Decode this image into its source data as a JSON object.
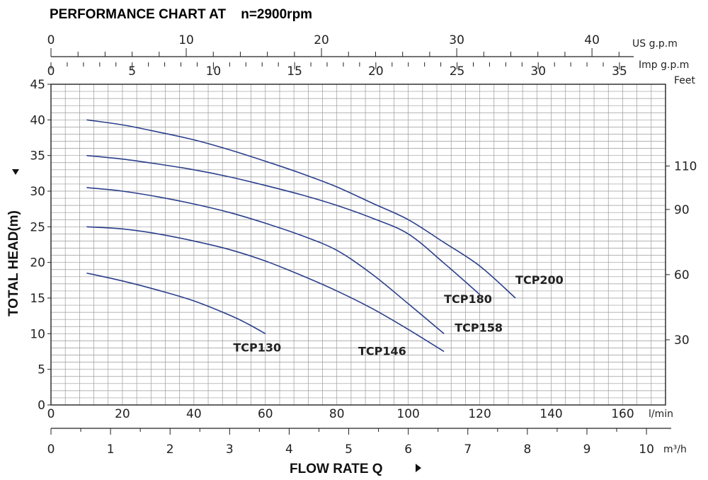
{
  "chart_data": {
    "type": "line",
    "title": "PERFORMANCE CHART AT    n=2900rpm",
    "ylabel": "TOTAL HEAD(m)",
    "xlabel": "FLOW RATE Q",
    "x_unit": "l/min",
    "xlim": [
      0,
      172
    ],
    "ylim": [
      0,
      45
    ],
    "x_ticks": [
      0,
      20,
      40,
      60,
      80,
      100,
      120,
      140,
      160
    ],
    "y_ticks": [
      0,
      5,
      10,
      15,
      20,
      25,
      30,
      35,
      40,
      45
    ],
    "grid": true,
    "secondary_axes": {
      "us_gpm": {
        "unit": "US g.p.m",
        "ticks": [
          0,
          10,
          20,
          30,
          40
        ]
      },
      "imp_gpm": {
        "unit": "Imp g.p.m",
        "ticks": [
          0,
          5,
          10,
          15,
          20,
          25,
          30,
          35
        ]
      },
      "feet": {
        "unit": "Feet",
        "ticks": [
          30,
          60,
          90,
          110
        ]
      },
      "m3h": {
        "unit": "m³/h",
        "ticks": [
          0,
          1,
          2,
          3,
          4,
          5,
          6,
          7,
          8,
          9,
          10
        ]
      }
    },
    "series": [
      {
        "name": "TCP130",
        "x": [
          10,
          20,
          30,
          40,
          50,
          55,
          60
        ],
        "y": [
          18.5,
          17.4,
          16.1,
          14.6,
          12.6,
          11.4,
          10
        ]
      },
      {
        "name": "TCP146",
        "x": [
          10,
          20,
          30,
          40,
          50,
          60,
          70,
          80,
          90,
          100,
          110
        ],
        "y": [
          25,
          24.7,
          24,
          23,
          21.8,
          20.2,
          18.2,
          16,
          13.5,
          10.6,
          7.5
        ]
      },
      {
        "name": "TCP158",
        "x": [
          10,
          20,
          30,
          40,
          50,
          60,
          70,
          80,
          90,
          100,
          110
        ],
        "y": [
          30.5,
          30,
          29.2,
          28.2,
          27,
          25.5,
          23.8,
          21.7,
          18.3,
          14.2,
          10
        ]
      },
      {
        "name": "TCP180",
        "x": [
          10,
          20,
          30,
          40,
          50,
          60,
          70,
          80,
          90,
          100,
          110,
          120
        ],
        "y": [
          35,
          34.5,
          33.8,
          33,
          32,
          30.8,
          29.5,
          28,
          26.2,
          24,
          19.9,
          15.5
        ]
      },
      {
        "name": "TCP200",
        "x": [
          10,
          20,
          30,
          40,
          50,
          60,
          70,
          80,
          90,
          100,
          110,
          120,
          130
        ],
        "y": [
          40,
          39.3,
          38.3,
          37.2,
          35.8,
          34.2,
          32.5,
          30.6,
          28.3,
          26,
          22.8,
          19.5,
          15
        ]
      }
    ]
  }
}
